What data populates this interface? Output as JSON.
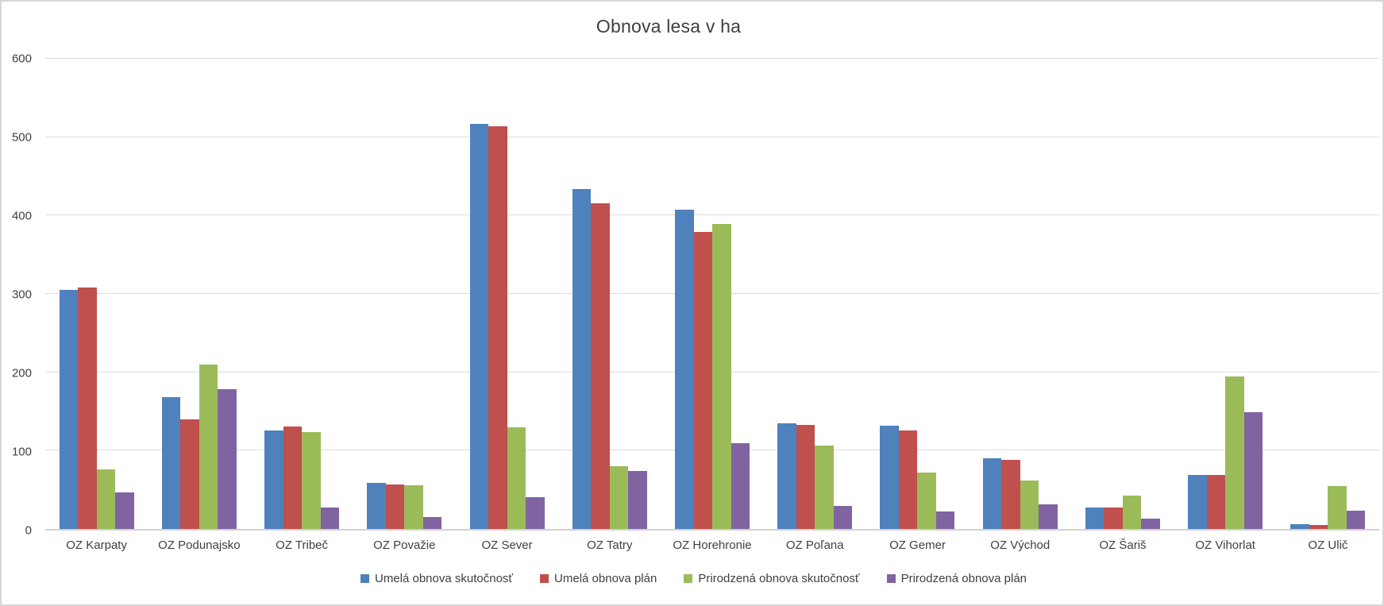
{
  "window": {
    "background": "#ffffff",
    "frame_border_color": "#d6d6d6"
  },
  "chart_data": {
    "type": "bar",
    "title": "Obnova lesa v ha",
    "categories": [
      "OZ Karpaty",
      "OZ Podunajsko",
      "OZ Tribeč",
      "OZ Považie",
      "OZ Sever",
      "OZ Tatry",
      "OZ Horehronie",
      "OZ Poľana",
      "OZ Gemer",
      "OZ Východ",
      "OZ Šariš",
      "OZ Vihorlat",
      "OZ Ulič"
    ],
    "series": [
      {
        "name": "Umelá obnova skutočnosť",
        "color": "#4F81BD",
        "values": [
          305,
          168,
          126,
          59,
          517,
          434,
          407,
          135,
          132,
          90,
          27,
          69,
          6
        ]
      },
      {
        "name": "Umelá obnova plán",
        "color": "#C0504D",
        "values": [
          308,
          140,
          131,
          57,
          514,
          416,
          379,
          133,
          126,
          88,
          27,
          69,
          5
        ]
      },
      {
        "name": "Prirodzená obnova skutočnosť",
        "color": "#9BBB59",
        "values": [
          76,
          210,
          124,
          56,
          130,
          80,
          389,
          106,
          72,
          62,
          43,
          195,
          55
        ]
      },
      {
        "name": "Prirodzená obnova plán",
        "color": "#8064A2",
        "values": [
          47,
          178,
          27,
          15,
          41,
          74,
          109,
          29,
          22,
          31,
          13,
          149,
          23
        ]
      }
    ],
    "xlabel": "",
    "ylabel": "",
    "ylim": [
      0,
      600
    ],
    "yticks": [
      0,
      100,
      200,
      300,
      400,
      500,
      600
    ],
    "grid": true,
    "gridline_color": "#dcdcdc",
    "axis_line_color": "#d2d2d2",
    "axis_text_color": "#404040",
    "legend_position": "bottom"
  }
}
